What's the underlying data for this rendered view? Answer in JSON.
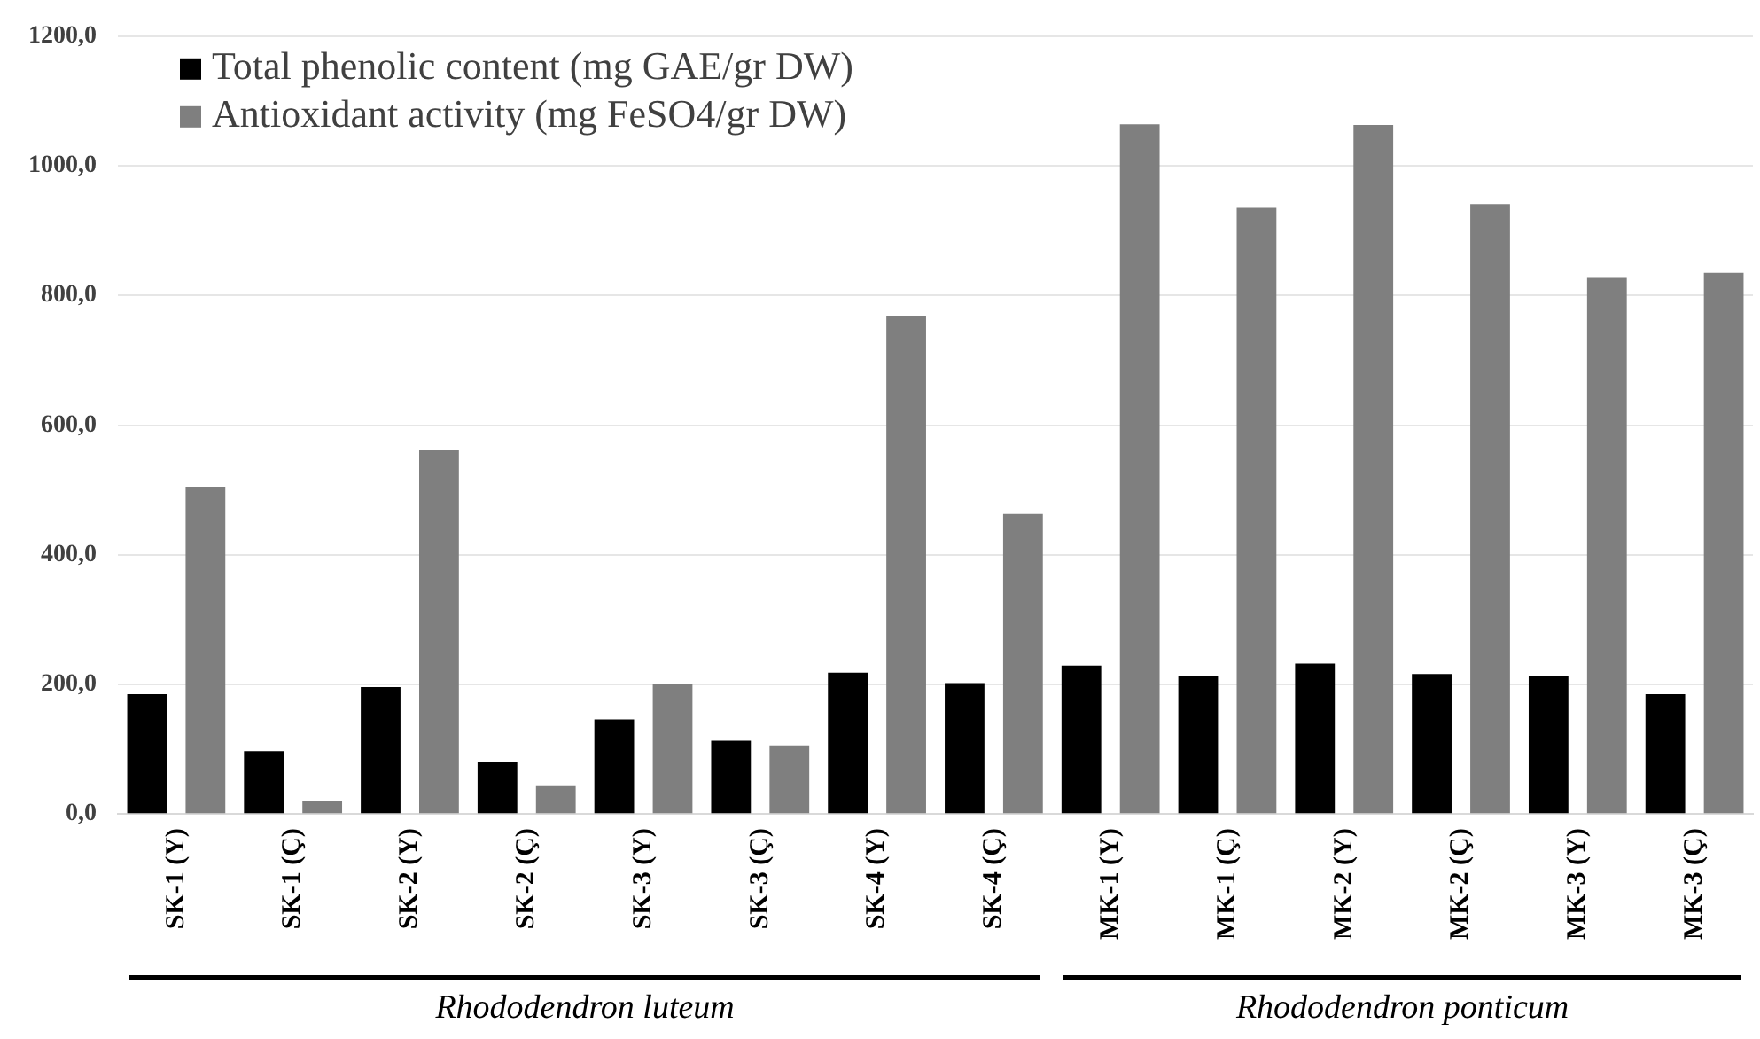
{
  "chart_data": {
    "type": "bar",
    "categories": [
      "SK-1 (Y)",
      "SK-1 (Ç)",
      "SK-2 (Y)",
      "SK-2 (Ç)",
      "SK-3 (Y)",
      "SK-3 (Ç)",
      "SK-4 (Y)",
      "SK-4 (Ç)",
      "MK-1 (Y)",
      "MK-1 (Ç)",
      "MK-2 (Y)",
      "MK-2 (Ç)",
      "MK-3 (Y)",
      "MK-3 (Ç)"
    ],
    "series": [
      {
        "name": "Total phenolic content (mg GAE/gr DW)",
        "color": "#000000",
        "values": [
          185,
          97,
          196,
          81,
          146,
          113,
          218,
          202,
          229,
          213,
          232,
          216,
          213,
          185
        ]
      },
      {
        "name": "Antioxidant activity (mg FeSO4/gr DW)",
        "color": "#7f7f7f",
        "values": [
          505,
          20,
          561,
          43,
          200,
          106,
          769,
          463,
          1064,
          935,
          1063,
          941,
          827,
          835
        ]
      }
    ],
    "ylim": [
      0,
      1200
    ],
    "yticks": [
      {
        "value": 0,
        "label": "0,0"
      },
      {
        "value": 200,
        "label": "200,0"
      },
      {
        "value": 400,
        "label": "400,0"
      },
      {
        "value": 600,
        "label": "600,0"
      },
      {
        "value": 800,
        "label": "800,0"
      },
      {
        "value": 1000,
        "label": "1000,0"
      },
      {
        "value": 1200,
        "label": "1200,0"
      }
    ],
    "grid": "y",
    "legend": "top left",
    "annotations": [
      "Rhododendron luteum",
      "Rhododendron ponticum"
    ]
  }
}
